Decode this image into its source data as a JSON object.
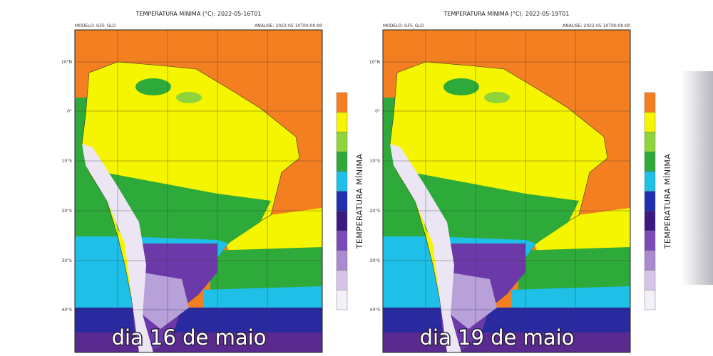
{
  "colorbar_colors": [
    "#f47f20",
    "#f5f500",
    "#8fd43a",
    "#2eaa3a",
    "#1fc0e8",
    "#1f2fb0",
    "#3a1a80",
    "#7a4ab8",
    "#a98ad0",
    "#d5c5e8",
    "#f4f0f8"
  ],
  "panels": [
    {
      "title": "TEMPERATURA MÍNIMA (°C): 2022-05-16T01",
      "model": "MODELO: GFS_GLO",
      "analysis": "ANÁLISE: 2022-05-10T00:00:00",
      "lat_labels": [
        "10°N",
        "0°",
        "10°S",
        "20°S",
        "30°S",
        "40°S"
      ],
      "colorbar_label": "TEMPERATURA MÍNIMA",
      "caption": "dia 16 de maio"
    },
    {
      "title": "TEMPERATURA MÍNIMA (°C): 2022-05-19T01",
      "model": "MODELO: GFS_GLO",
      "analysis": "ANÁLISE: 2022-05-10T00:00:00",
      "lat_labels": [
        "10°N",
        "0°",
        "10°S",
        "20°S",
        "30°S",
        "40°S"
      ],
      "colorbar_label": "TEMPERATURA MÍNIMA",
      "caption": "dia 19 de maio"
    }
  ]
}
